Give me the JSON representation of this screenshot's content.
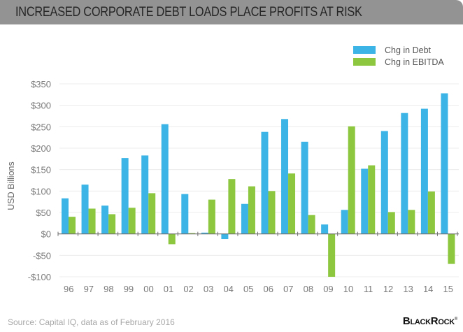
{
  "header": {
    "title": "INCREASED CORPORATE DEBT LOADS PLACE PROFITS AT RISK"
  },
  "footer": {
    "source": "Source: Capital IQ, data as of February 2016",
    "logo": "BlackRock",
    "logo_mark": "®"
  },
  "colors": {
    "debt": "#3cb4e6",
    "ebitda": "#8dc63f",
    "header_bg": "#939393",
    "grid": "#ececec",
    "axis": "#6d6d6d"
  },
  "chart_data": {
    "type": "bar",
    "title": "INCREASED CORPORATE DEBT LOADS PLACE PROFITS AT RISK",
    "xlabel": "",
    "ylabel": "USD Billions",
    "ylim": [
      -100,
      350
    ],
    "yticks": [
      350,
      300,
      250,
      200,
      150,
      100,
      50,
      0,
      -50,
      -100
    ],
    "ytick_labels": [
      "$350",
      "$300",
      "$250",
      "$200",
      "$150",
      "$100",
      "$50",
      "$0",
      "-$50",
      "-$100"
    ],
    "grid": true,
    "legend_position": "top-right",
    "categories": [
      "96",
      "97",
      "98",
      "99",
      "00",
      "01",
      "02",
      "03",
      "04",
      "05",
      "06",
      "07",
      "08",
      "09",
      "10",
      "11",
      "12",
      "13",
      "14",
      "15"
    ],
    "series": [
      {
        "name": "Chg in Debt",
        "color": "#3cb4e6",
        "values": [
          83,
          115,
          66,
          177,
          183,
          256,
          93,
          3,
          -12,
          70,
          238,
          268,
          215,
          22,
          56,
          152,
          240,
          282,
          292,
          328
        ]
      },
      {
        "name": "Chg in EBITDA",
        "color": "#8dc63f",
        "values": [
          40,
          59,
          46,
          61,
          95,
          -24,
          2,
          80,
          128,
          111,
          100,
          141,
          44,
          -100,
          251,
          160,
          51,
          56,
          99,
          -70
        ]
      }
    ]
  }
}
